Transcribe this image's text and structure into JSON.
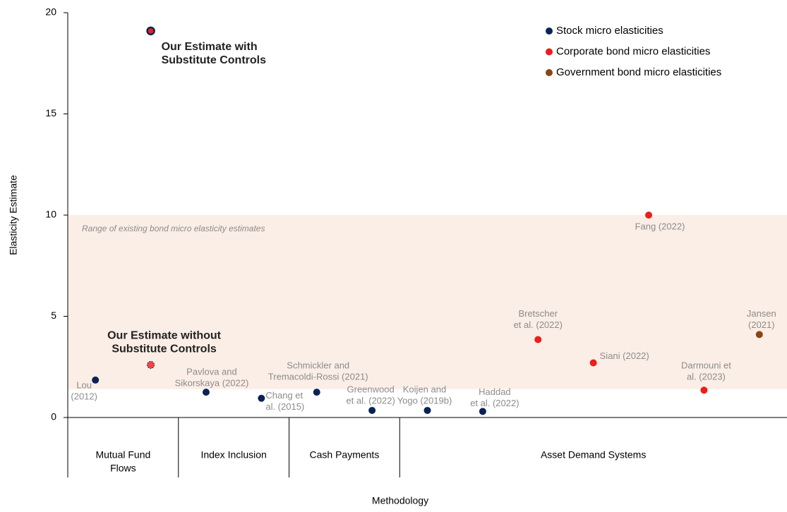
{
  "chart_data": {
    "type": "scatter",
    "y_label": "Elasticity Estimate",
    "x_label": "Methodology",
    "xlim": [
      0.5,
      13.5
    ],
    "ylim": [
      0,
      20
    ],
    "yticks": [
      0,
      5,
      10,
      15,
      20
    ],
    "groups": [
      {
        "label": [
          "Mutual Fund",
          "Flows"
        ],
        "span": [
          0.5,
          2.5
        ]
      },
      {
        "label": [
          "Index Inclusion"
        ],
        "span": [
          2.5,
          4.5
        ]
      },
      {
        "label": [
          "Cash Payments"
        ],
        "span": [
          4.5,
          6.5
        ]
      },
      {
        "label": [
          "Asset Demand Systems"
        ],
        "span": [
          6.5,
          13.5
        ]
      }
    ],
    "band": {
      "range": [
        1.4,
        10
      ],
      "label": "Range of existing bond micro elasticity estimates",
      "color": "#fbeee6"
    },
    "series": [
      {
        "name": "Stock micro elasticities",
        "color": "#0b2255",
        "x": [
          1,
          3,
          4,
          5,
          6,
          7,
          8
        ],
        "values": [
          1.85,
          1.25,
          0.95,
          1.25,
          0.35,
          0.35,
          0.3
        ],
        "labels": [
          [
            "Lou",
            "(2012)"
          ],
          [
            "Pavlova and",
            "Sikorskaya (2022)"
          ],
          [
            "Chang et",
            "al. (2015)"
          ],
          [
            "Schmickler and",
            "Tremacoldi-Rossi (2021)"
          ],
          [
            "Greenwood",
            "et al. (2022)"
          ],
          [
            "Koijen and",
            "Yogo (2019b)"
          ],
          [
            "Haddad",
            "et al. (2022)"
          ]
        ]
      },
      {
        "name": "Corporate bond micro elasticities",
        "color": "#ee1c1c",
        "x": [
          9,
          10,
          11,
          12
        ],
        "values": [
          3.85,
          2.7,
          10.0,
          1.35
        ],
        "labels": [
          [
            "Bretscher",
            "et al. (2022)"
          ],
          [
            "Siani (2022)"
          ],
          [
            "Fang (2022)"
          ],
          [
            "Darmouni et",
            "al. (2023)"
          ]
        ]
      },
      {
        "name": "Government bond micro elasticities",
        "color": "#8b4513",
        "x": [
          13
        ],
        "values": [
          4.1
        ],
        "labels": [
          [
            "Jansen",
            "(2021)"
          ]
        ]
      }
    ],
    "highlights": [
      {
        "label": [
          "Our Estimate with",
          "Substitute Controls"
        ],
        "x": 2,
        "value": 19.1
      },
      {
        "label": [
          "Our Estimate without",
          "Substitute Controls"
        ],
        "x": 2,
        "value": 2.6
      }
    ]
  }
}
